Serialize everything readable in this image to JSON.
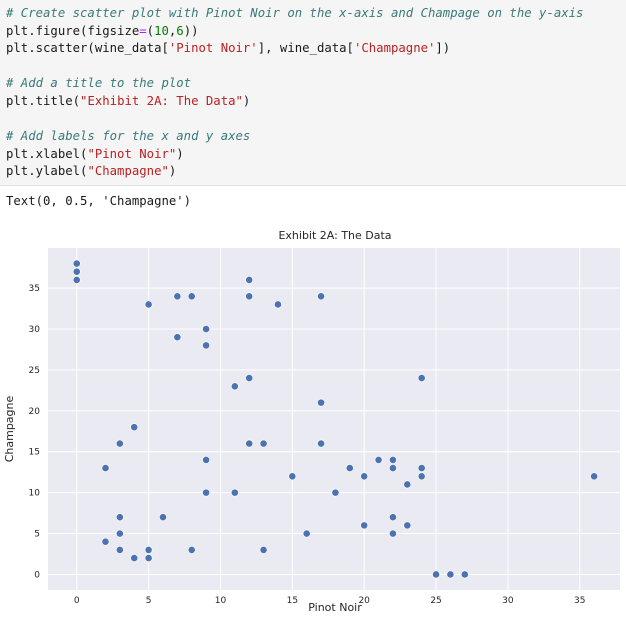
{
  "code": {
    "comment1": "# Create scatter plot with Pinot Noir on the x-axis and Champage on the y-axis",
    "line2_a": "plt.figure(figsize",
    "line2_op": "=",
    "line2_b": "(",
    "line2_n1": "10",
    "line2_c": ",",
    "line2_n2": "6",
    "line2_d": "))",
    "line3_a": "plt.scatter(wine_data[",
    "line3_s1": "'Pinot Noir'",
    "line3_b": "], wine_data[",
    "line3_s2": "'Champagne'",
    "line3_c": "])",
    "comment2": "# Add a title to the plot",
    "line5_a": "plt.title(",
    "line5_s": "\"Exhibit 2A: The Data\"",
    "line5_b": ")",
    "comment3": "# Add labels for the x and y axes",
    "line7_a": "plt.xlabel(",
    "line7_s": "\"Pinot Noir\"",
    "line7_b": ")",
    "line8_a": "plt.ylabel(",
    "line8_s": "\"Champagne\"",
    "line8_b": ")"
  },
  "output": {
    "text": "Text(0, 0.5, 'Champagne')"
  },
  "colors": {
    "plot_bg": "#eaeaf2",
    "grid": "#ffffff",
    "point": "#4c72b0"
  },
  "chart_data": {
    "type": "scatter",
    "title": "Exhibit 2A: The Data",
    "xlabel": "Pinot Noir",
    "ylabel": "Champagne",
    "xlim": [
      -2.0,
      37.8
    ],
    "ylim": [
      -1.9,
      39.9
    ],
    "xticks": [
      0,
      5,
      10,
      15,
      20,
      25,
      30,
      35
    ],
    "yticks": [
      0,
      5,
      10,
      15,
      20,
      25,
      30,
      35
    ],
    "grid": true,
    "points": [
      [
        0,
        38
      ],
      [
        0,
        37
      ],
      [
        0,
        36
      ],
      [
        2,
        4
      ],
      [
        2,
        13
      ],
      [
        3,
        16
      ],
      [
        3,
        7
      ],
      [
        3,
        5
      ],
      [
        3,
        3
      ],
      [
        4,
        18
      ],
      [
        4,
        2
      ],
      [
        5,
        33
      ],
      [
        5,
        3
      ],
      [
        5,
        2
      ],
      [
        6,
        7
      ],
      [
        7,
        34
      ],
      [
        7,
        29
      ],
      [
        8,
        34
      ],
      [
        8,
        3
      ],
      [
        9,
        30
      ],
      [
        9,
        28
      ],
      [
        9,
        14
      ],
      [
        9,
        10
      ],
      [
        11,
        23
      ],
      [
        11,
        10
      ],
      [
        12,
        36
      ],
      [
        12,
        34
      ],
      [
        12,
        24
      ],
      [
        12,
        16
      ],
      [
        13,
        16
      ],
      [
        13,
        3
      ],
      [
        14,
        33
      ],
      [
        15,
        12
      ],
      [
        16,
        5
      ],
      [
        17,
        34
      ],
      [
        17,
        21
      ],
      [
        17,
        16
      ],
      [
        18,
        10
      ],
      [
        19,
        13
      ],
      [
        20,
        12
      ],
      [
        20,
        6
      ],
      [
        21,
        14
      ],
      [
        22,
        14
      ],
      [
        22,
        13
      ],
      [
        22,
        7
      ],
      [
        22,
        5
      ],
      [
        23,
        11
      ],
      [
        23,
        6
      ],
      [
        24,
        24
      ],
      [
        24,
        13
      ],
      [
        24,
        12
      ],
      [
        25,
        0
      ],
      [
        26,
        0
      ],
      [
        27,
        0
      ],
      [
        36,
        12
      ]
    ]
  }
}
